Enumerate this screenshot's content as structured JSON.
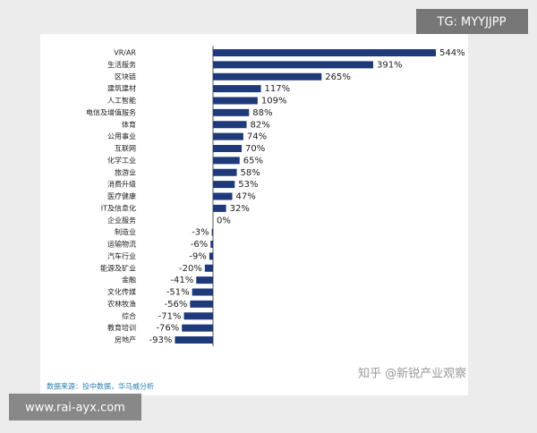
{
  "chart_data": {
    "type": "bar",
    "orientation": "horizontal",
    "color": "#1f3a7a",
    "categories": [
      "VR/AR",
      "生活服务",
      "区块链",
      "建筑建材",
      "人工智能",
      "电信及增值服务",
      "体育",
      "公用事业",
      "互联网",
      "化学工业",
      "旅游业",
      "消费升级",
      "医疗健康",
      "IT及信息化",
      "企业服务",
      "制造业",
      "运输物流",
      "汽车行业",
      "能源及矿业",
      "金融",
      "文化传媒",
      "农林牧渔",
      "综合",
      "教育培训",
      "房地产"
    ],
    "values": [
      544,
      391,
      265,
      117,
      109,
      88,
      82,
      74,
      70,
      65,
      58,
      53,
      47,
      32,
      0,
      -3,
      -6,
      -9,
      -20,
      -41,
      -51,
      -56,
      -71,
      -76,
      -93
    ],
    "value_labels": [
      "544%",
      "391%",
      "265%",
      "117%",
      "109%",
      "88%",
      "82%",
      "74%",
      "70%",
      "65%",
      "58%",
      "53%",
      "47%",
      "32%",
      "0%",
      "-3%",
      "-6%",
      "-9%",
      "-20%",
      "-41%",
      "-51%",
      "-56%",
      "-71%",
      "-76%",
      "-93%"
    ],
    "source": "数据来源：投中数据，华马威分析"
  },
  "overlays": {
    "tag": "TG: MYYJJPP",
    "site": "www.rai-ayx.com",
    "watermark": "知乎 @新锐产业观察"
  }
}
